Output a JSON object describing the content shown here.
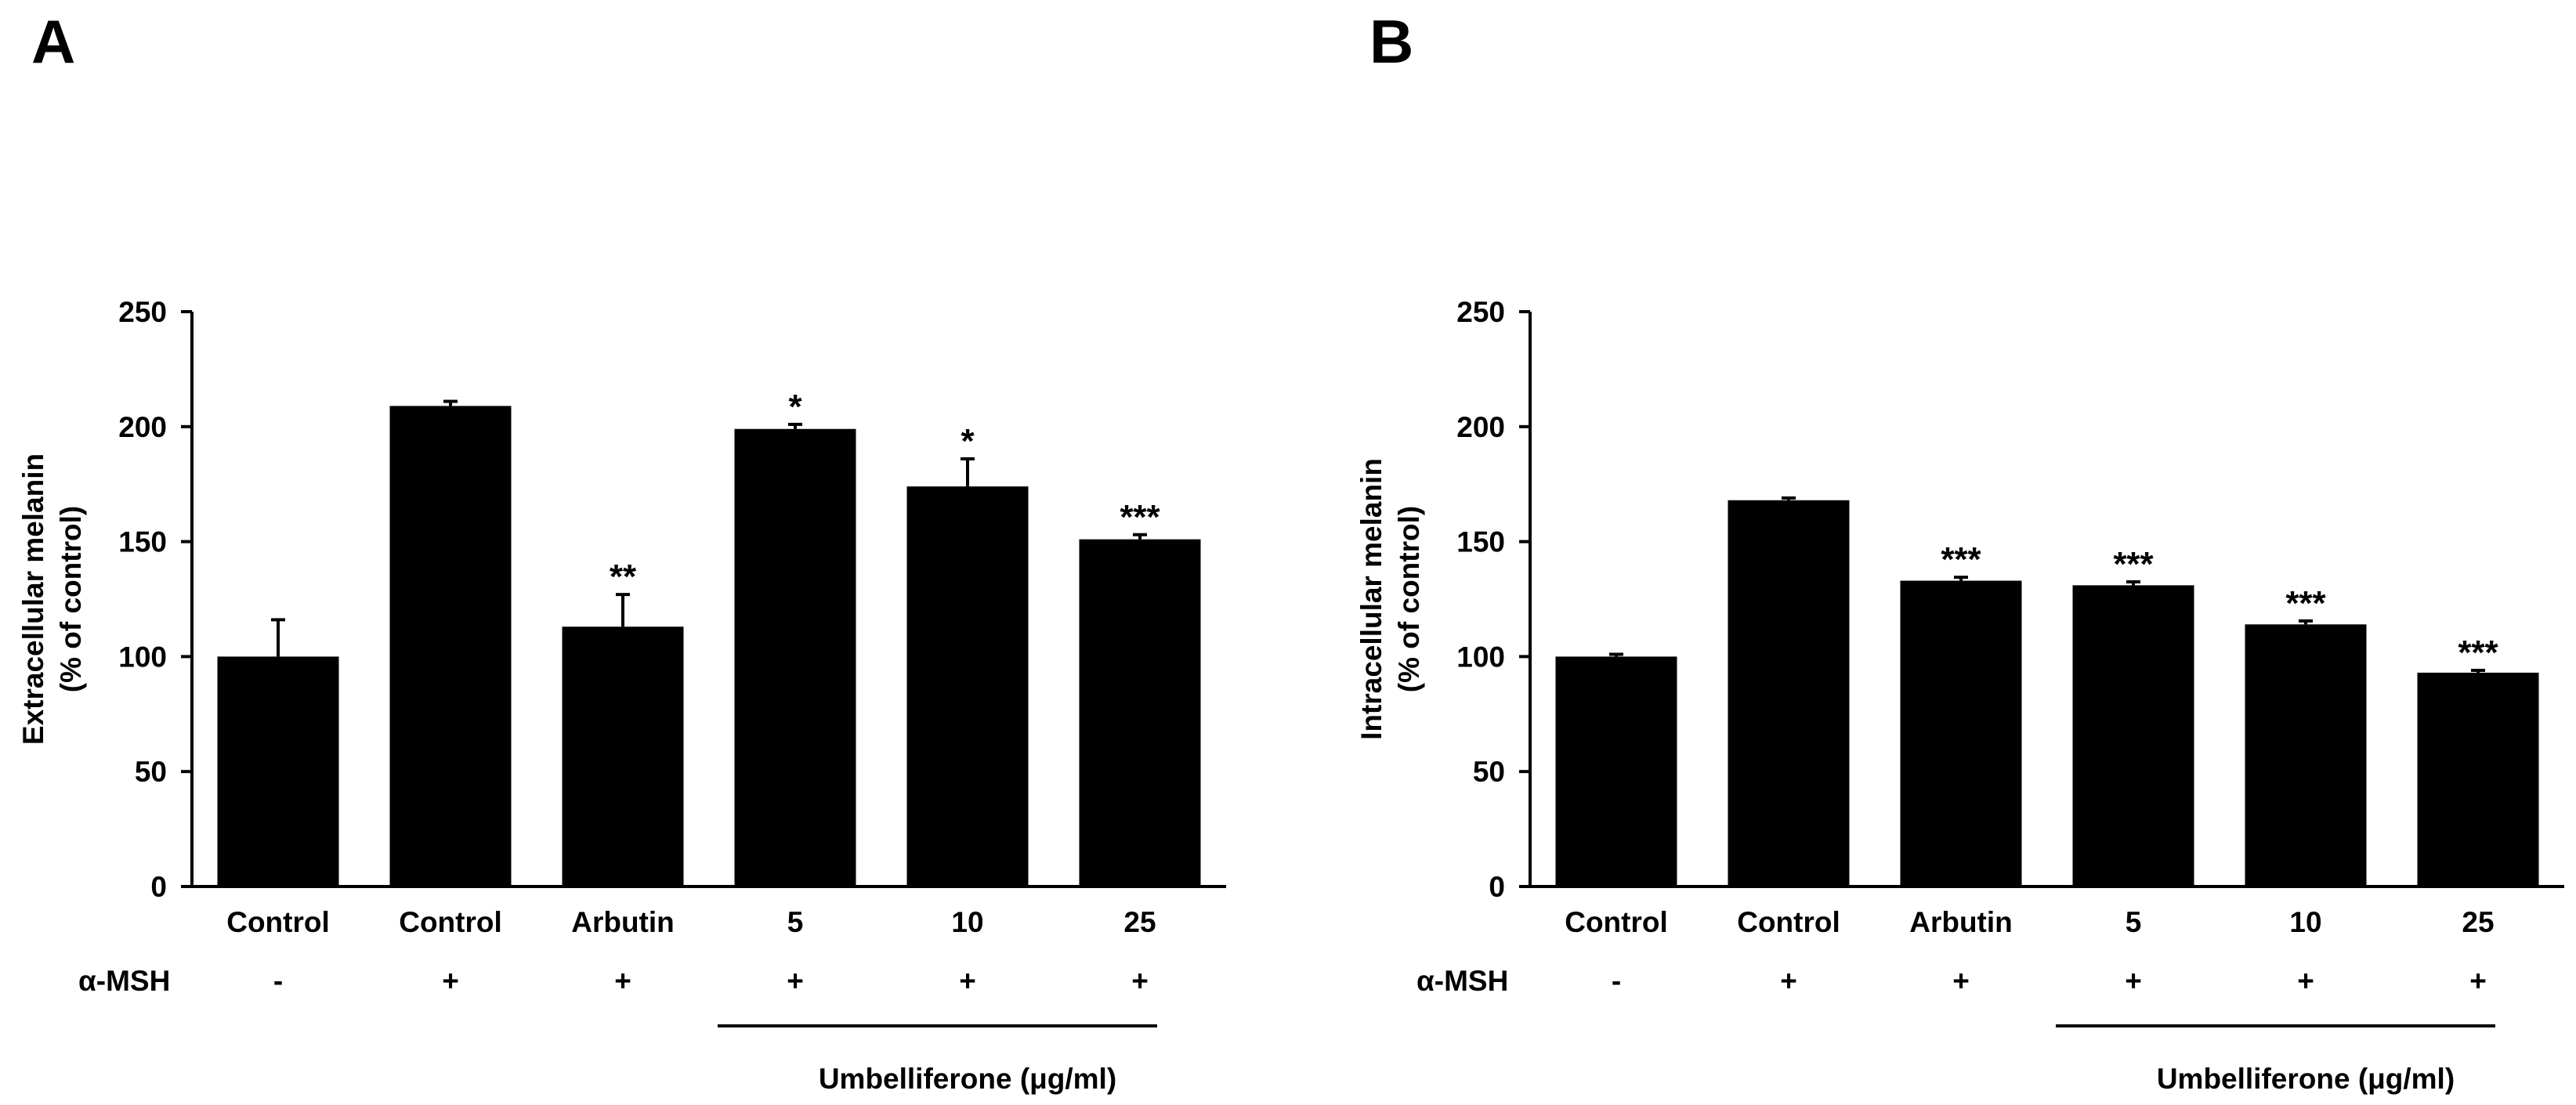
{
  "chart_data": [
    {
      "panel_label": "A",
      "type": "bar",
      "ylabel_line1": "Extracellular melanin",
      "ylabel_line2": "(% of control)",
      "ylim": [
        0,
        250
      ],
      "yticks": [
        "0",
        "50",
        "100",
        "150",
        "200",
        "250"
      ],
      "categories": [
        "Control",
        "Control",
        "Arbutin",
        "5",
        "10",
        "25"
      ],
      "values": [
        100,
        209,
        113,
        199,
        174,
        151
      ],
      "errors": [
        16,
        2,
        14,
        2,
        12,
        2
      ],
      "significance": [
        "",
        "",
        "**",
        "*",
        "*",
        "***"
      ],
      "row_label": "α-MSH",
      "treatment": [
        "-",
        "+",
        "+",
        "+",
        "+",
        "+"
      ],
      "group_label": "Umbelliferone (μg/ml)",
      "bar_color": "#000000"
    },
    {
      "panel_label": "B",
      "type": "bar",
      "ylabel_line1": "Intracellular melanin",
      "ylabel_line2": "(% of control)",
      "ylim": [
        0,
        250
      ],
      "yticks": [
        "0",
        "50",
        "100",
        "150",
        "200",
        "250"
      ],
      "categories": [
        "Control",
        "Control",
        "Arbutin",
        "5",
        "10",
        "25"
      ],
      "values": [
        100,
        168,
        133,
        131,
        114,
        93
      ],
      "errors": [
        1,
        1,
        1.5,
        1.5,
        1.5,
        1
      ],
      "significance": [
        "",
        "",
        "***",
        "***",
        "***",
        "***"
      ],
      "row_label": "α-MSH",
      "treatment": [
        "-",
        "+",
        "+",
        "+",
        "+",
        "+"
      ],
      "group_label": "Umbelliferone (μg/ml)",
      "bar_color": "#000000"
    }
  ]
}
